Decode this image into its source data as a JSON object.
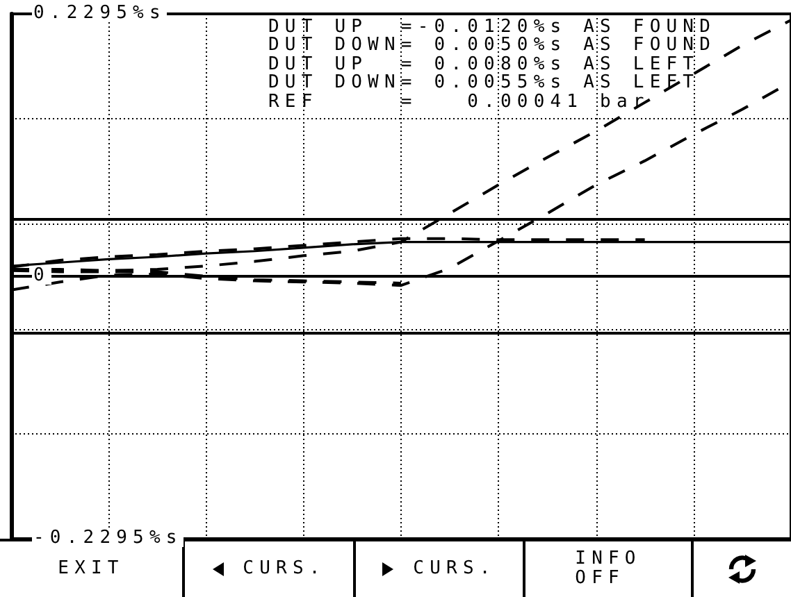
{
  "chart_data": {
    "type": "line",
    "categories": [
      null,
      null,
      null,
      null,
      null,
      null,
      null,
      null,
      null,
      null,
      null,
      null,
      null,
      null,
      null,
      null,
      null
    ],
    "series": [
      {
        "color": "#000000",
        "line_style": "solid",
        "values": [
          0.009,
          0.012,
          0.015,
          0.017,
          0.02,
          0.022,
          0.025,
          0.028,
          0.03,
          0.03,
          0.03,
          0.03,
          0.03,
          0.03,
          0.03,
          0.03,
          0.03
        ]
      },
      {
        "color": "#000000",
        "values": [
          0.008,
          0.014,
          0.017,
          0.019,
          0.022,
          0.024,
          0.027,
          0.03,
          0.033,
          0.033,
          0.032,
          0.032,
          0.032,
          0.032,
          null,
          null,
          null
        ]
      },
      {
        "color": "#000000",
        "values": [
          0.005,
          0.004,
          0.004,
          0.004,
          0.0,
          -0.003,
          -0.004,
          -0.005,
          -0.006,
          null,
          null,
          null,
          null,
          null,
          null,
          null,
          null
        ]
      },
      {
        "color": "#000000",
        "values": [
          -0.012,
          -0.005,
          0.001,
          0.002,
          -0.002,
          -0.004,
          -0.005,
          -0.006,
          -0.008,
          0.007,
          0.031,
          0.055,
          0.08,
          0.101,
          0.124,
          0.146,
          0.17
        ]
      },
      {
        "color": "#000000",
        "values": [
          0.006,
          0.006,
          0.005,
          0.006,
          0.009,
          0.013,
          0.018,
          0.022,
          0.03,
          0.055,
          0.08,
          0.104,
          0.127,
          0.152,
          0.177,
          0.202,
          0.224
        ]
      }
    ],
    "ylim": [
      -0.2295,
      0.2295
    ],
    "yticks": [
      {
        "value": -0.2295,
        "label": "-0.2295%s"
      },
      {
        "value": -0.1377,
        "label": null
      },
      {
        "value": -0.0459,
        "label": null
      },
      0,
      {
        "value": 0.0459,
        "label": null
      },
      {
        "value": 0.1377,
        "label": null
      },
      {
        "value": 0.2295,
        "label": "0.2295%s"
      }
    ],
    "grid": true,
    "marker": "none",
    "line_style": "dashed",
    "ref_lines": [
      {
        "axis": "y",
        "value": 0.05,
        "color": "#000000",
        "line_style": "solid"
      },
      {
        "axis": "y",
        "value": -0.05,
        "color": "#000000",
        "line_style": "solid"
      }
    ],
    "annotations": [
      "DUT UP  =-0.0120%s AS FOUND",
      "DUT DOWN= 0.0050%s AS FOUND",
      "DUT UP  = 0.0080%s AS LEFT",
      "DUT DOWN= 0.0055%s AS LEFT",
      "REF     =   0.00041 bar",
      "EXIT",
      "CURS.",
      "CURS.",
      "INFO\nOFF"
    ]
  }
}
